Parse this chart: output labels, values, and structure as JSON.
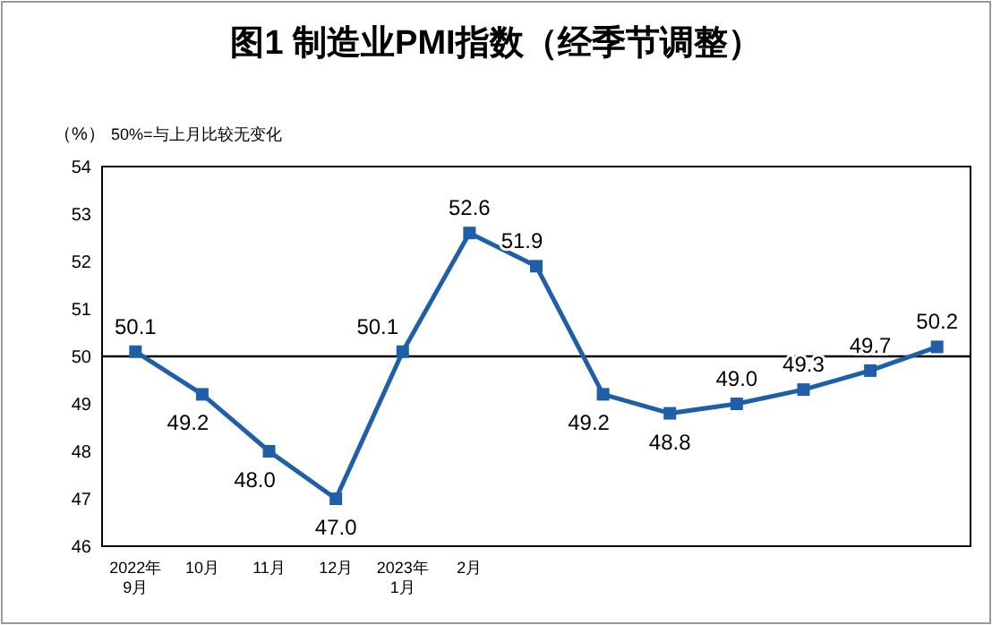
{
  "chart_data": {
    "type": "line",
    "title": "图1 制造业PMI指数（经季节调整）",
    "ylabel": "（%）",
    "annotations": [
      "50%=与上月比较无变化"
    ],
    "categories": [
      "2022年\n9月",
      "10月",
      "11月",
      "12月",
      "2023年\n1月",
      "2月",
      null,
      null,
      null,
      null,
      null,
      null,
      null
    ],
    "series": [
      {
        "color": "#1f5fa8",
        "values": [
          50.1,
          49.2,
          48.0,
          47.0,
          50.1,
          52.6,
          51.9,
          49.2,
          48.8,
          49.0,
          49.3,
          49.7,
          50.2
        ],
        "value_labels": [
          "50.1",
          "49.2",
          "48.0",
          "47.0",
          "50.1",
          "52.6",
          "51.9",
          "49.2",
          "48.8",
          "49.0",
          "49.3",
          "49.7",
          "50.2"
        ]
      }
    ],
    "ylim": [
      46,
      54
    ],
    "yticks": [
      46,
      47,
      48,
      49,
      50,
      51,
      52,
      53,
      54
    ],
    "ref_lines": [
      {
        "axis": "y",
        "value": 50,
        "color": "#000000"
      }
    ],
    "marker": "square",
    "line_style": "solid",
    "grid": false
  }
}
